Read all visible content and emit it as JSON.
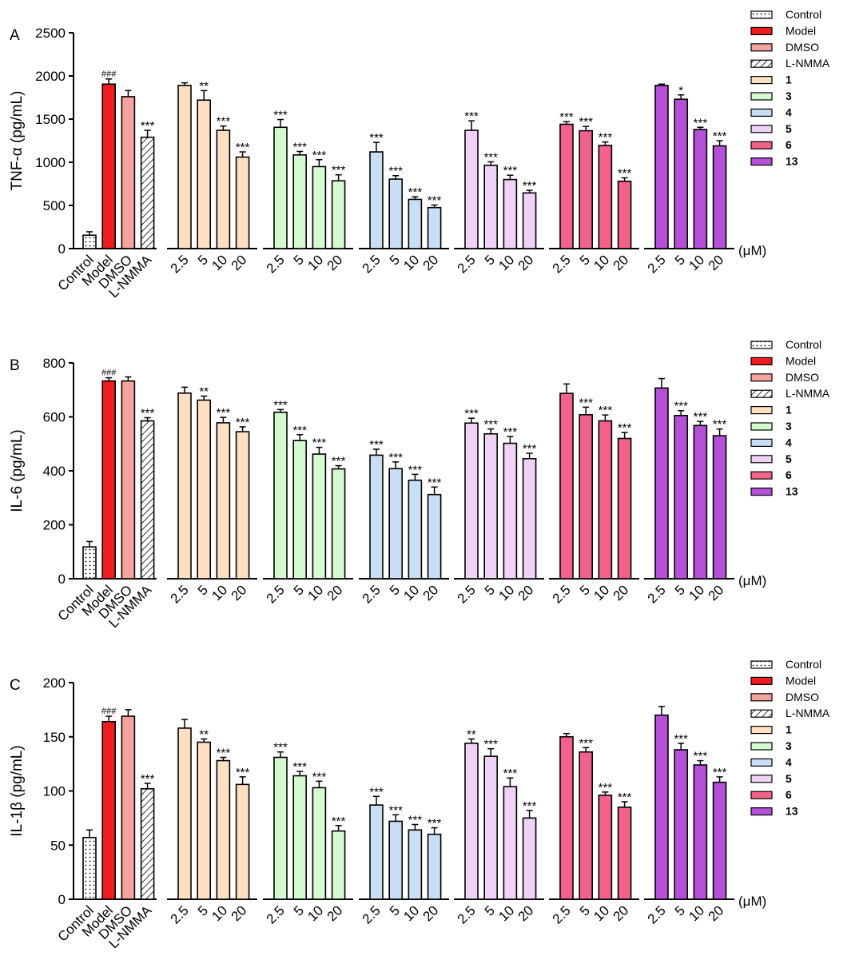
{
  "figure": {
    "unit_label": "(μM)"
  },
  "legend_entries": [
    {
      "label": "Control",
      "fill": "#ffffff",
      "pattern": "dots"
    },
    {
      "label": "Model",
      "fill": "#ee1c1c",
      "pattern": "none"
    },
    {
      "label": "DMSO",
      "fill": "#f4a39e",
      "pattern": "none"
    },
    {
      "label": "L-NMMA",
      "fill": "#ffffff",
      "pattern": "hatch"
    },
    {
      "label": "1",
      "fill": "#fde0c2",
      "pattern": "none"
    },
    {
      "label": "3",
      "fill": "#d3fbcf",
      "pattern": "none"
    },
    {
      "label": "4",
      "fill": "#c9def5",
      "pattern": "none"
    },
    {
      "label": "5",
      "fill": "#f1d2f7",
      "pattern": "none"
    },
    {
      "label": "6",
      "fill": "#f2628a",
      "pattern": "none"
    },
    {
      "label": "13",
      "fill": "#b550d8",
      "pattern": "none"
    }
  ],
  "categories": [
    "Control",
    "Model",
    "DMSO",
    "L-NMMA",
    "2.5",
    "5",
    "10",
    "20",
    "2.5",
    "5",
    "10",
    "20",
    "2.5",
    "5",
    "10",
    "20",
    "2.5",
    "5",
    "10",
    "20",
    "2.5",
    "5",
    "10",
    "20",
    "2.5",
    "5",
    "10",
    "20"
  ],
  "chart_data": [
    {
      "type": "bar",
      "panel": "A",
      "ylabel": "TNF-α (pg/mL)",
      "ylim": [
        0,
        2500
      ],
      "yticks": [
        0,
        500,
        1000,
        1500,
        2000,
        2500
      ],
      "values": [
        155,
        1905,
        1760,
        1290,
        1890,
        1720,
        1370,
        1060,
        1405,
        1085,
        950,
        785,
        1120,
        805,
        570,
        475,
        1370,
        965,
        800,
        645,
        1440,
        1365,
        1195,
        780,
        1890,
        1730,
        1380,
        1190
      ],
      "errors": [
        40,
        60,
        70,
        80,
        30,
        110,
        50,
        60,
        90,
        40,
        80,
        70,
        110,
        40,
        30,
        30,
        110,
        40,
        50,
        30,
        30,
        50,
        40,
        40,
        15,
        50,
        25,
        60
      ],
      "annotations": [
        "",
        "###",
        "",
        "***",
        "",
        "**",
        "***",
        "***",
        "***",
        "***",
        "***",
        "***",
        "***",
        "***",
        "***",
        "***",
        "***",
        "***",
        "***",
        "***",
        "***",
        "***",
        "***",
        "***",
        "",
        "*",
        "***",
        "***"
      ]
    },
    {
      "type": "bar",
      "panel": "B",
      "ylabel": "IL-6 (pg/mL)",
      "ylim": [
        0,
        800
      ],
      "yticks": [
        0,
        200,
        400,
        600,
        800
      ],
      "values": [
        118,
        733,
        733,
        585,
        688,
        662,
        578,
        545,
        617,
        512,
        462,
        407,
        458,
        408,
        365,
        312,
        577,
        537,
        502,
        445,
        687,
        608,
        585,
        520,
        707,
        605,
        568,
        530
      ],
      "errors": [
        20,
        12,
        15,
        12,
        22,
        15,
        20,
        18,
        10,
        22,
        25,
        12,
        22,
        25,
        22,
        28,
        18,
        18,
        25,
        20,
        35,
        28,
        22,
        22,
        35,
        18,
        15,
        25
      ],
      "annotations": [
        "",
        "###",
        "",
        "***",
        "",
        "**",
        "***",
        "***",
        "***",
        "***",
        "***",
        "***",
        "***",
        "***",
        "***",
        "***",
        "***",
        "***",
        "***",
        "***",
        "",
        "***",
        "***",
        "***",
        "",
        "***",
        "***",
        "***"
      ]
    },
    {
      "type": "bar",
      "panel": "C",
      "ylabel": "IL-1β (pg/mL)",
      "ylim": [
        0,
        200
      ],
      "yticks": [
        0,
        50,
        100,
        150,
        200
      ],
      "values": [
        57,
        164,
        169,
        102,
        158,
        145,
        128,
        106,
        131,
        114,
        103,
        63,
        87,
        72,
        64,
        60,
        144,
        132,
        104,
        75,
        150,
        136,
        96,
        85,
        170,
        138,
        124,
        108
      ],
      "errors": [
        7,
        5,
        6,
        5,
        8,
        3,
        3,
        7,
        5,
        4,
        6,
        5,
        8,
        6,
        5,
        6,
        4,
        7,
        8,
        7,
        3,
        4,
        3,
        5,
        8,
        6,
        4,
        5
      ],
      "annotations": [
        "",
        "###",
        "",
        "***",
        "",
        "**",
        "***",
        "***",
        "***",
        "***",
        "***",
        "***",
        "***",
        "***",
        "***",
        "***",
        "**",
        "***",
        "***",
        "***",
        "",
        "***",
        "***",
        "***",
        "",
        "***",
        "***",
        "***"
      ]
    }
  ]
}
